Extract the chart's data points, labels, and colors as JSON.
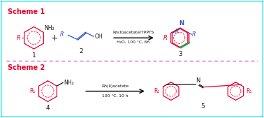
{
  "bg_color": "#ffffff",
  "border_color": "#00d8d8",
  "scheme1_label": "Scheme 1",
  "scheme2_label": "Scheme 2",
  "red": "#e8002d",
  "blue": "#3050c8",
  "green": "#28a050",
  "black": "#111111",
  "dashed_color": "#cc55cc",
  "reaction1_above": "Rh(II)acetate/TPPTS",
  "reaction1_below": "H₂O, 100 °C, 6h",
  "reaction2_above": "Rh(II)acetate",
  "reaction2_below": "100 °C, 10 h"
}
